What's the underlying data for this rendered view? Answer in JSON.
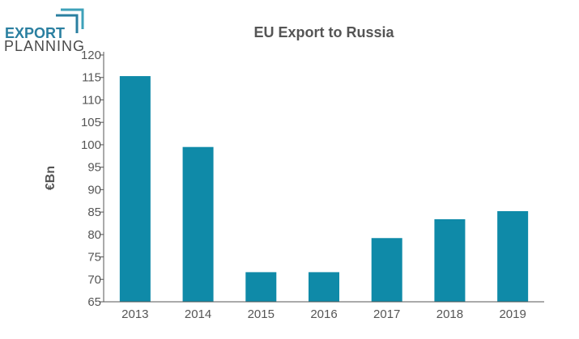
{
  "logo": {
    "line1": "EXPORT",
    "line2": "PLANNING",
    "color_primary": "#2a7fa0",
    "color_secondary": "#4a4a4a"
  },
  "chart_data": {
    "type": "bar",
    "title": "EU Export to Russia",
    "xlabel": "",
    "ylabel": "€Bn",
    "categories": [
      "2013",
      "2014",
      "2015",
      "2016",
      "2017",
      "2018",
      "2019"
    ],
    "values": [
      115.3,
      99.5,
      71.6,
      71.6,
      79.2,
      83.4,
      85.2
    ],
    "ylim": [
      65,
      120
    ],
    "yticks": [
      65,
      70,
      75,
      80,
      85,
      90,
      95,
      100,
      105,
      110,
      115,
      120
    ],
    "bar_color": "#0f8aa8",
    "grid": false,
    "legend": "none"
  }
}
